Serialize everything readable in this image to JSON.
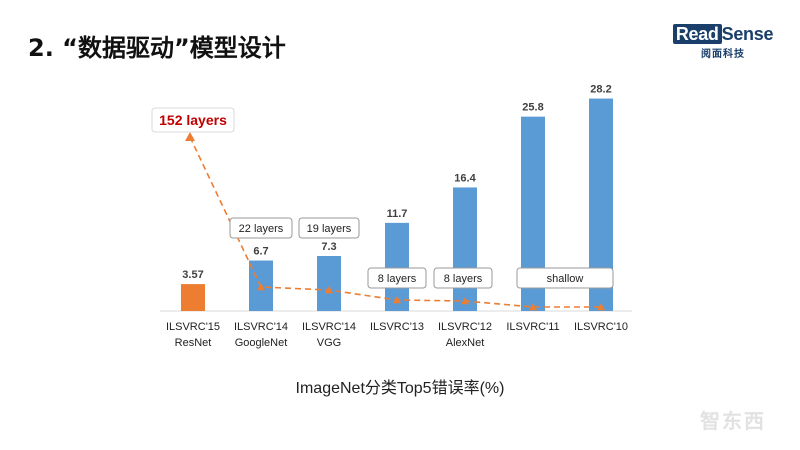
{
  "slide": {
    "title": "2. “数据驱动”模型设计",
    "brand_en_a": "Read",
    "brand_en_b": "Sense",
    "brand_cn": "阅面科技",
    "watermark": "智东西"
  },
  "colors": {
    "bar_default": "#5b9bd5",
    "bar_highlight": "#ed7d31",
    "trend_line": "#ed7d31",
    "highlight_text": "#c00000"
  },
  "chart_data": {
    "type": "bar",
    "title": "",
    "xlabel": "ImageNet分类Top5错误率(%)",
    "ylabel": "",
    "categories": [
      [
        "ILSVRC'15",
        "ResNet"
      ],
      [
        "ILSVRC'14",
        "GoogleNet"
      ],
      [
        "ILSVRC'14",
        "VGG"
      ],
      [
        "ILSVRC'13",
        ""
      ],
      [
        "ILSVRC'12",
        "AlexNet"
      ],
      [
        "ILSVRC'11",
        ""
      ],
      [
        "ILSVRC'10",
        ""
      ]
    ],
    "values": [
      3.57,
      6.7,
      7.3,
      11.7,
      16.4,
      25.8,
      28.2
    ],
    "value_labels": [
      "3.57",
      "6.7",
      "7.3",
      "11.7",
      "16.4",
      "25.8",
      "28.2"
    ],
    "highlight_index": 0,
    "ylim": [
      0,
      30
    ],
    "grid": false,
    "depth_series": {
      "name": "",
      "labels": [
        "152 layers",
        "22 layers",
        "19 layers",
        "8 layers",
        "8 layers",
        "shallow",
        "shallow"
      ],
      "values": [
        152,
        22,
        19,
        8,
        8,
        1,
        1
      ]
    },
    "layer_annotations": [
      {
        "text": "152 layers",
        "category_index": 0
      },
      {
        "text": "22 layers",
        "category_index": 1
      },
      {
        "text": "19 layers",
        "category_index": 2
      },
      {
        "text": "8 layers",
        "category_index": 3
      },
      {
        "text": "8 layers",
        "category_index": 4
      },
      {
        "text": "shallow",
        "category_index": 5
      }
    ]
  }
}
